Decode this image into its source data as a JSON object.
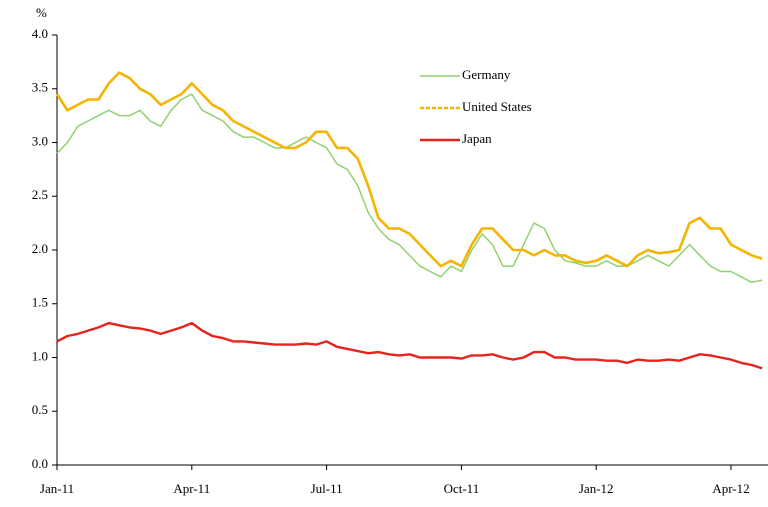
{
  "chart_data": {
    "type": "line",
    "y_unit_label": "%",
    "categories": [
      "Jan-11",
      null,
      null,
      null,
      null,
      null,
      null,
      null,
      null,
      null,
      null,
      null,
      null,
      "Apr-11",
      null,
      null,
      null,
      null,
      null,
      null,
      null,
      null,
      null,
      null,
      null,
      null,
      "Jul-11",
      null,
      null,
      null,
      null,
      null,
      null,
      null,
      null,
      null,
      null,
      null,
      null,
      "Oct-11",
      null,
      null,
      null,
      null,
      null,
      null,
      null,
      null,
      null,
      null,
      null,
      null,
      "Jan-12",
      null,
      null,
      null,
      null,
      null,
      null,
      null,
      null,
      null,
      null,
      null,
      null,
      "Apr-12",
      null,
      null,
      null
    ],
    "series": [
      {
        "name": "Germany",
        "color": "#8fd26f",
        "values": [
          2.9,
          3.0,
          3.15,
          3.2,
          3.25,
          3.3,
          3.25,
          3.25,
          3.3,
          3.2,
          3.15,
          3.3,
          3.4,
          3.45,
          3.3,
          3.25,
          3.2,
          3.1,
          3.05,
          3.05,
          3.0,
          2.95,
          2.95,
          3.0,
          3.05,
          3.0,
          2.95,
          2.8,
          2.75,
          2.6,
          2.35,
          2.2,
          2.1,
          2.05,
          1.95,
          1.85,
          1.8,
          1.75,
          1.85,
          1.8,
          2.0,
          2.15,
          2.05,
          1.85,
          1.85,
          2.05,
          2.25,
          2.2,
          2.0,
          1.9,
          1.88,
          1.85,
          1.85,
          1.9,
          1.85,
          1.85,
          1.9,
          1.95,
          1.9,
          1.85,
          1.95,
          2.05,
          1.95,
          1.85,
          1.8,
          1.8,
          1.75,
          1.7,
          1.72
        ]
      },
      {
        "name": "United States",
        "color": "#f5b400",
        "values": [
          3.45,
          3.3,
          3.35,
          3.4,
          3.4,
          3.55,
          3.65,
          3.6,
          3.5,
          3.45,
          3.35,
          3.4,
          3.45,
          3.55,
          3.45,
          3.35,
          3.3,
          3.2,
          3.15,
          3.1,
          3.05,
          3.0,
          2.95,
          2.95,
          3.0,
          3.1,
          3.1,
          2.95,
          2.95,
          2.85,
          2.6,
          2.3,
          2.2,
          2.2,
          2.15,
          2.05,
          1.95,
          1.85,
          1.9,
          1.85,
          2.05,
          2.2,
          2.2,
          2.1,
          2.0,
          2.0,
          1.95,
          2.0,
          1.95,
          1.95,
          1.9,
          1.88,
          1.9,
          1.95,
          1.9,
          1.85,
          1.95,
          2.0,
          1.97,
          1.98,
          2.0,
          2.25,
          2.3,
          2.2,
          2.2,
          2.05,
          2.0,
          1.95,
          1.92
        ]
      },
      {
        "name": "Japan",
        "color": "#e8231c",
        "values": [
          1.15,
          1.2,
          1.22,
          1.25,
          1.28,
          1.32,
          1.3,
          1.28,
          1.27,
          1.25,
          1.22,
          1.25,
          1.28,
          1.32,
          1.25,
          1.2,
          1.18,
          1.15,
          1.15,
          1.14,
          1.13,
          1.12,
          1.12,
          1.12,
          1.13,
          1.12,
          1.15,
          1.1,
          1.08,
          1.06,
          1.04,
          1.05,
          1.03,
          1.02,
          1.03,
          1.0,
          1.0,
          1.0,
          1.0,
          0.99,
          1.02,
          1.02,
          1.03,
          1.0,
          0.98,
          1.0,
          1.05,
          1.05,
          1.0,
          1.0,
          0.98,
          0.98,
          0.98,
          0.97,
          0.97,
          0.95,
          0.98,
          0.97,
          0.97,
          0.98,
          0.97,
          1.0,
          1.03,
          1.02,
          1.0,
          0.98,
          0.95,
          0.93,
          0.9
        ]
      }
    ],
    "ylim": [
      0,
      4
    ],
    "yticks": [
      {
        "value": 0,
        "label": "0.0"
      },
      0.5,
      {
        "value": 1,
        "label": "1.0"
      },
      1.5,
      {
        "value": 2,
        "label": "2.0"
      },
      2.5,
      {
        "value": 3,
        "label": "3.0"
      },
      3.5,
      {
        "value": 4,
        "label": "4.0"
      }
    ],
    "grid": false,
    "legend": "upper center"
  }
}
